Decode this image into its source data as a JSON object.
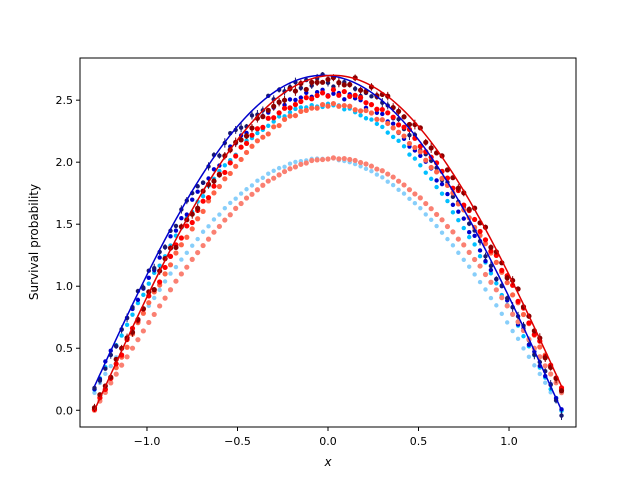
{
  "chart_data": {
    "type": "scatter",
    "title": "",
    "xlabel": "x",
    "ylabel": "Survival probability",
    "xlim": [
      -1.37,
      1.37
    ],
    "ylim": [
      -0.135,
      2.84
    ],
    "xticks": [
      -1.0,
      -0.5,
      0.0,
      0.5,
      1.0
    ],
    "xtick_labels": [
      "−1.0",
      "−0.5",
      "0.0",
      "0.5",
      "1.0"
    ],
    "yticks": [
      0.0,
      0.5,
      1.0,
      1.5,
      2.0,
      2.5
    ],
    "ytick_labels": [
      "0.0",
      "0.5",
      "1.0",
      "1.5",
      "2.0",
      "2.5"
    ],
    "grid": false,
    "legend": "none",
    "x_range": [
      -1.29,
      1.29
    ],
    "n_points": 87,
    "series": [
      {
        "style": "scatter",
        "color": "#87cefa",
        "amplitude": 2.03,
        "noise": 0.005,
        "direction": "left",
        "point_size": 2.2
      },
      {
        "style": "scatter",
        "color": "#00bfff",
        "amplitude": 2.46,
        "noise": 0.015,
        "direction": "left",
        "point_size": 2.2
      },
      {
        "style": "scatter",
        "color": "#0000cd",
        "amplitude": 2.56,
        "noise": 0.03,
        "direction": "left",
        "point_size": 2.2
      },
      {
        "style": "scatter",
        "color": "#191970",
        "amplitude": 2.66,
        "noise": 0.05,
        "direction": "left",
        "point_size": 2.2,
        "error_bars": true
      },
      {
        "style": "scatter",
        "color": "#fa8072",
        "amplitude": 2.03,
        "noise": 0.005,
        "direction": "right",
        "point_size": 2.6
      },
      {
        "style": "scatter",
        "color": "#ff6347",
        "amplitude": 2.46,
        "noise": 0.015,
        "direction": "right",
        "point_size": 2.6
      },
      {
        "style": "scatter",
        "color": "#ff0000",
        "amplitude": 2.56,
        "noise": 0.03,
        "direction": "right",
        "point_size": 2.6
      },
      {
        "style": "scatter",
        "color": "#8b0000",
        "amplitude": 2.66,
        "noise": 0.05,
        "direction": "right",
        "point_size": 2.6,
        "error_bars": true
      },
      {
        "style": "line",
        "color": "#0000cd",
        "amplitude": 2.7,
        "direction": "left"
      },
      {
        "style": "line",
        "color": "#dd0000",
        "amplitude": 2.7,
        "direction": "right"
      }
    ]
  }
}
